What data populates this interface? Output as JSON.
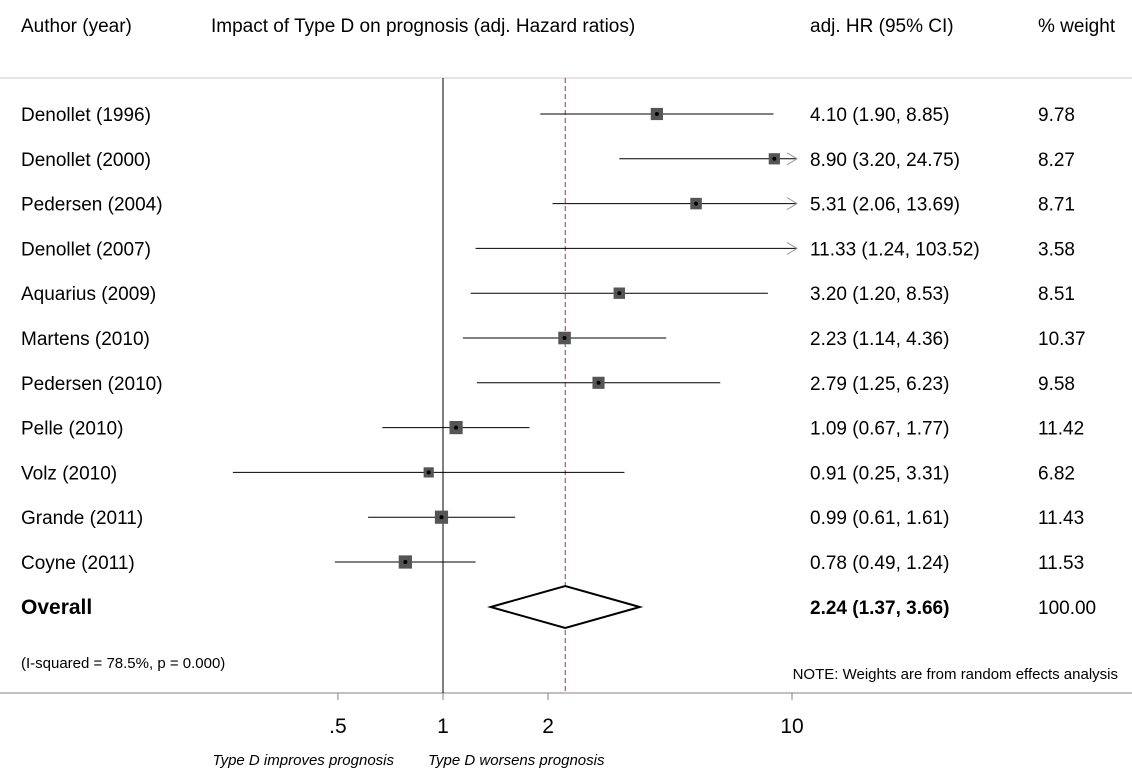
{
  "header": {
    "author_col": "Author (year)",
    "plot_col": "Impact of Type D on prognosis (adj. Hazard ratios)",
    "hr_col": "adj. HR (95% CI)",
    "weight_col": "% weight"
  },
  "chart_data": {
    "type": "forest",
    "x_scale": "log",
    "xlim": [
      0.2,
      25
    ],
    "null_line": 1,
    "pooled_line": 2.24,
    "x_ticks": [
      {
        "value": 0.5,
        "label": ".5"
      },
      {
        "value": 1,
        "label": "1"
      },
      {
        "value": 2,
        "label": "2"
      },
      {
        "value": 10,
        "label": "10"
      }
    ],
    "studies": [
      {
        "label": "Denollet (1996)",
        "hr": 4.1,
        "lo": 1.9,
        "hi": 8.85,
        "hr_text": "4.10 (1.90, 8.85)",
        "weight": "9.78",
        "w": 9.78
      },
      {
        "label": "Denollet (2000)",
        "hr": 8.9,
        "lo": 3.2,
        "hi": 24.75,
        "hr_text": "8.90 (3.20, 24.75)",
        "weight": "8.27",
        "w": 8.27
      },
      {
        "label": "Pedersen (2004)",
        "hr": 5.31,
        "lo": 2.06,
        "hi": 13.69,
        "hr_text": "5.31 (2.06, 13.69)",
        "weight": "8.71",
        "w": 8.71
      },
      {
        "label": "Denollet (2007)",
        "hr": 11.33,
        "lo": 1.24,
        "hi": 103.52,
        "hr_text": "11.33 (1.24, 103.52)",
        "weight": "3.58",
        "w": 3.58
      },
      {
        "label": "Aquarius (2009)",
        "hr": 3.2,
        "lo": 1.2,
        "hi": 8.53,
        "hr_text": "3.20 (1.20, 8.53)",
        "weight": "8.51",
        "w": 8.51
      },
      {
        "label": "Martens (2010)",
        "hr": 2.23,
        "lo": 1.14,
        "hi": 4.36,
        "hr_text": "2.23 (1.14, 4.36)",
        "weight": "10.37",
        "w": 10.37
      },
      {
        "label": "Pedersen (2010)",
        "hr": 2.79,
        "lo": 1.25,
        "hi": 6.23,
        "hr_text": "2.79 (1.25, 6.23)",
        "weight": "9.58",
        "w": 9.58
      },
      {
        "label": "Pelle (2010)",
        "hr": 1.09,
        "lo": 0.67,
        "hi": 1.77,
        "hr_text": "1.09 (0.67, 1.77)",
        "weight": "11.42",
        "w": 11.42
      },
      {
        "label": "Volz (2010)",
        "hr": 0.91,
        "lo": 0.25,
        "hi": 3.31,
        "hr_text": "0.91 (0.25, 3.31)",
        "weight": "6.82",
        "w": 6.82
      },
      {
        "label": "Grande (2011)",
        "hr": 0.99,
        "lo": 0.61,
        "hi": 1.61,
        "hr_text": "0.99 (0.61, 1.61)",
        "weight": "11.43",
        "w": 11.43
      },
      {
        "label": "Coyne (2011)",
        "hr": 0.78,
        "lo": 0.49,
        "hi": 1.24,
        "hr_text": "0.78 (0.49, 1.24)",
        "weight": "11.53",
        "w": 11.53
      }
    ],
    "overall": {
      "label": "Overall",
      "hr": 2.24,
      "lo": 1.37,
      "hi": 3.66,
      "hr_text": "2.24 (1.37, 3.66)",
      "weight": "100.00"
    },
    "heterogeneity": "(I-squared = 78.5%, p = 0.000)",
    "note": "NOTE: Weights are from random effects analysis",
    "axis_left_label": "Type D improves prognosis",
    "axis_right_label": "Type D worsens prognosis"
  }
}
